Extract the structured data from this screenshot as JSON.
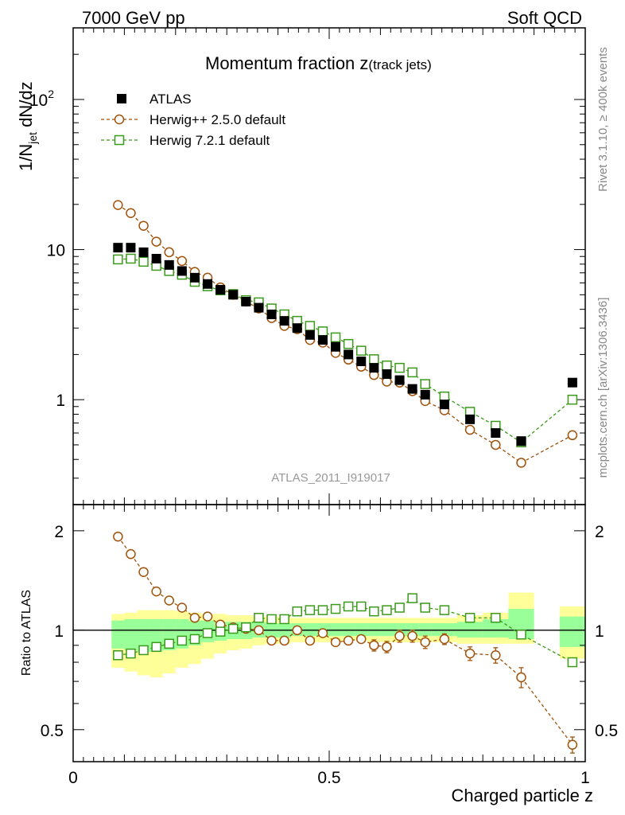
{
  "header": {
    "left": "7000 GeV pp",
    "right": "Soft QCD"
  },
  "side_labels": {
    "rivet": "Rivet 3.1.10, ≥ 400k events",
    "mcplots": "mcplots.cern.ch [arXiv:1306.3436]"
  },
  "chart_data": [
    {
      "type": "scatter",
      "panel": "main",
      "title_main": "Momentum fraction z",
      "title_sub": "(track jets)",
      "analysis_label": "ATLAS_2011_I919017",
      "ylabel": {
        "main": "1/N",
        "sub": "jet",
        "tail": " dN/dz"
      },
      "yscale": "log",
      "ylim": [
        0.2,
        300
      ],
      "xlim": [
        0,
        1
      ],
      "yticks": [
        {
          "value": 100,
          "base": "10",
          "exp": "2"
        },
        {
          "value": 10,
          "base": "10",
          "exp": ""
        },
        {
          "value": 1,
          "base": "1",
          "exp": ""
        }
      ],
      "legend_position": "top-left",
      "series": [
        {
          "name": "ATLAS",
          "marker": "filled-square",
          "color": "#000000",
          "x": [
            0.0875,
            0.1125,
            0.1375,
            0.1625,
            0.1875,
            0.2125,
            0.2375,
            0.2625,
            0.2875,
            0.3125,
            0.3375,
            0.3625,
            0.3875,
            0.4125,
            0.4375,
            0.4625,
            0.4875,
            0.5125,
            0.5375,
            0.5625,
            0.5875,
            0.6125,
            0.6375,
            0.6625,
            0.6875,
            0.725,
            0.775,
            0.825,
            0.875,
            0.975
          ],
          "values": [
            10.3,
            10.3,
            9.6,
            8.7,
            7.9,
            7.2,
            6.5,
            5.9,
            5.4,
            5.0,
            4.5,
            4.1,
            3.7,
            3.35,
            3.0,
            2.7,
            2.5,
            2.25,
            2.0,
            1.8,
            1.63,
            1.48,
            1.35,
            1.18,
            1.08,
            0.93,
            0.74,
            0.6,
            0.53,
            1.3
          ]
        },
        {
          "name": "Herwig++ 2.5.0 default",
          "marker": "open-circle",
          "color": "#a0520a",
          "x": [
            0.0875,
            0.1125,
            0.1375,
            0.1625,
            0.1875,
            0.2125,
            0.2375,
            0.2625,
            0.2875,
            0.3125,
            0.3375,
            0.3625,
            0.3875,
            0.4125,
            0.4375,
            0.4625,
            0.4875,
            0.5125,
            0.5375,
            0.5625,
            0.5875,
            0.6125,
            0.6375,
            0.6625,
            0.6875,
            0.725,
            0.775,
            0.825,
            0.875,
            0.975
          ],
          "values": [
            19.8,
            17.5,
            14.4,
            11.3,
            9.6,
            8.4,
            7.1,
            6.5,
            5.6,
            5.0,
            4.5,
            4.05,
            3.5,
            3.1,
            2.95,
            2.5,
            2.4,
            2.05,
            1.85,
            1.66,
            1.46,
            1.32,
            1.3,
            1.14,
            0.98,
            0.85,
            0.63,
            0.5,
            0.38,
            0.58
          ]
        },
        {
          "name": "Herwig 7.2.1 default",
          "marker": "open-square",
          "color": "#3a9a1a",
          "x": [
            0.0875,
            0.1125,
            0.1375,
            0.1625,
            0.1875,
            0.2125,
            0.2375,
            0.2625,
            0.2875,
            0.3125,
            0.3375,
            0.3625,
            0.3875,
            0.4125,
            0.4375,
            0.4625,
            0.4875,
            0.5125,
            0.5375,
            0.5625,
            0.5875,
            0.6125,
            0.6375,
            0.6625,
            0.6875,
            0.725,
            0.775,
            0.825,
            0.875,
            0.975
          ],
          "values": [
            8.6,
            8.7,
            8.3,
            7.8,
            7.2,
            6.8,
            6.1,
            5.7,
            5.35,
            5.05,
            4.6,
            4.45,
            4.05,
            3.7,
            3.35,
            3.1,
            2.85,
            2.6,
            2.35,
            2.12,
            1.86,
            1.69,
            1.63,
            1.52,
            1.27,
            1.05,
            0.83,
            0.67,
            0.52,
            1.0
          ]
        }
      ]
    },
    {
      "type": "scatter",
      "panel": "ratio",
      "ylabel": "Ratio to ATLAS",
      "xlabel": "Charged particle z",
      "yscale": "log",
      "ylim": [
        0.4,
        2.4
      ],
      "xlim": [
        0,
        1
      ],
      "yticks": [
        {
          "value": 2,
          "label": "2"
        },
        {
          "value": 1,
          "label": "1"
        },
        {
          "value": 0.5,
          "label": "0.5"
        }
      ],
      "xticks": [
        {
          "value": 0,
          "label": "0"
        },
        {
          "value": 0.5,
          "label": "0.5"
        },
        {
          "value": 1,
          "label": "1"
        }
      ],
      "bins": [
        [
          0.075,
          0.1
        ],
        [
          0.1,
          0.125
        ],
        [
          0.125,
          0.15
        ],
        [
          0.15,
          0.175
        ],
        [
          0.175,
          0.2
        ],
        [
          0.2,
          0.225
        ],
        [
          0.225,
          0.25
        ],
        [
          0.25,
          0.275
        ],
        [
          0.275,
          0.3
        ],
        [
          0.3,
          0.325
        ],
        [
          0.325,
          0.35
        ],
        [
          0.35,
          0.375
        ],
        [
          0.375,
          0.4
        ],
        [
          0.4,
          0.425
        ],
        [
          0.425,
          0.45
        ],
        [
          0.45,
          0.475
        ],
        [
          0.475,
          0.5
        ],
        [
          0.5,
          0.525
        ],
        [
          0.525,
          0.55
        ],
        [
          0.55,
          0.575
        ],
        [
          0.575,
          0.6
        ],
        [
          0.6,
          0.625
        ],
        [
          0.625,
          0.65
        ],
        [
          0.65,
          0.675
        ],
        [
          0.675,
          0.7
        ],
        [
          0.7,
          0.75
        ],
        [
          0.75,
          0.8
        ],
        [
          0.8,
          0.85
        ],
        [
          0.85,
          0.9
        ],
        [
          0.95,
          1.0
        ]
      ],
      "band_outer": {
        "lo": [
          0.77,
          0.75,
          0.73,
          0.72,
          0.74,
          0.77,
          0.79,
          0.82,
          0.85,
          0.87,
          0.88,
          0.9,
          0.91,
          0.91,
          0.92,
          0.92,
          0.92,
          0.92,
          0.93,
          0.93,
          0.92,
          0.92,
          0.92,
          0.92,
          0.92,
          0.92,
          0.91,
          0.91,
          0.91,
          0.82
        ],
        "hi": [
          1.12,
          1.13,
          1.15,
          1.15,
          1.15,
          1.14,
          1.13,
          1.12,
          1.12,
          1.11,
          1.11,
          1.1,
          1.1,
          1.1,
          1.09,
          1.09,
          1.09,
          1.09,
          1.09,
          1.09,
          1.09,
          1.09,
          1.09,
          1.09,
          1.09,
          1.09,
          1.11,
          1.13,
          1.3,
          1.18
        ]
      },
      "band_inner": {
        "lo": [
          0.88,
          0.87,
          0.86,
          0.86,
          0.87,
          0.88,
          0.9,
          0.92,
          0.93,
          0.94,
          0.94,
          0.95,
          0.95,
          0.95,
          0.96,
          0.96,
          0.96,
          0.96,
          0.96,
          0.96,
          0.96,
          0.96,
          0.96,
          0.96,
          0.96,
          0.96,
          0.95,
          0.95,
          0.94,
          0.89
        ],
        "hi": [
          1.07,
          1.08,
          1.08,
          1.08,
          1.08,
          1.08,
          1.07,
          1.07,
          1.06,
          1.06,
          1.06,
          1.06,
          1.05,
          1.05,
          1.05,
          1.05,
          1.05,
          1.05,
          1.05,
          1.05,
          1.05,
          1.05,
          1.05,
          1.05,
          1.05,
          1.05,
          1.06,
          1.08,
          1.16,
          1.1
        ]
      },
      "series": [
        {
          "name": "Herwig++ 2.5.0 default",
          "marker": "open-circle",
          "color": "#a0520a",
          "x": [
            0.0875,
            0.1125,
            0.1375,
            0.1625,
            0.1875,
            0.2125,
            0.2375,
            0.2625,
            0.2875,
            0.3125,
            0.3375,
            0.3625,
            0.3875,
            0.4125,
            0.4375,
            0.4625,
            0.4875,
            0.5125,
            0.5375,
            0.5625,
            0.5875,
            0.6125,
            0.6375,
            0.6625,
            0.6875,
            0.725,
            0.775,
            0.825,
            0.875,
            0.975
          ],
          "values": [
            1.92,
            1.7,
            1.5,
            1.31,
            1.23,
            1.17,
            1.09,
            1.1,
            1.04,
            1.02,
            1.01,
            1.0,
            0.93,
            0.93,
            1.0,
            0.93,
            0.98,
            0.92,
            0.93,
            0.94,
            0.9,
            0.89,
            0.96,
            0.96,
            0.92,
            0.94,
            0.85,
            0.84,
            0.72,
            0.45
          ],
          "errors": [
            0.02,
            0.02,
            0.02,
            0.02,
            0.02,
            0.02,
            0.02,
            0.02,
            0.02,
            0.02,
            0.02,
            0.02,
            0.02,
            0.02,
            0.02,
            0.02,
            0.025,
            0.025,
            0.03,
            0.03,
            0.035,
            0.035,
            0.04,
            0.04,
            0.04,
            0.035,
            0.04,
            0.045,
            0.05,
            0.025
          ]
        },
        {
          "name": "Herwig 7.2.1 default",
          "marker": "open-square",
          "color": "#3a9a1a",
          "x": [
            0.0875,
            0.1125,
            0.1375,
            0.1625,
            0.1875,
            0.2125,
            0.2375,
            0.2625,
            0.2875,
            0.3125,
            0.3375,
            0.3625,
            0.3875,
            0.4125,
            0.4375,
            0.4625,
            0.4875,
            0.5125,
            0.5375,
            0.5625,
            0.5875,
            0.6125,
            0.6375,
            0.6625,
            0.6875,
            0.725,
            0.775,
            0.825,
            0.875,
            0.975
          ],
          "values": [
            0.84,
            0.85,
            0.87,
            0.89,
            0.91,
            0.93,
            0.94,
            0.98,
            0.99,
            1.01,
            1.02,
            1.09,
            1.08,
            1.08,
            1.14,
            1.15,
            1.15,
            1.16,
            1.18,
            1.18,
            1.14,
            1.15,
            1.17,
            1.25,
            1.17,
            1.15,
            1.09,
            1.09,
            0.97,
            0.8
          ],
          "errors": [
            0.01,
            0.01,
            0.01,
            0.01,
            0.01,
            0.01,
            0.01,
            0.01,
            0.01,
            0.01,
            0.01,
            0.01,
            0.01,
            0.01,
            0.01,
            0.01,
            0.015,
            0.015,
            0.015,
            0.015,
            0.02,
            0.02,
            0.02,
            0.02,
            0.02,
            0.02,
            0.02,
            0.02,
            0.02,
            0.015
          ]
        }
      ]
    }
  ]
}
